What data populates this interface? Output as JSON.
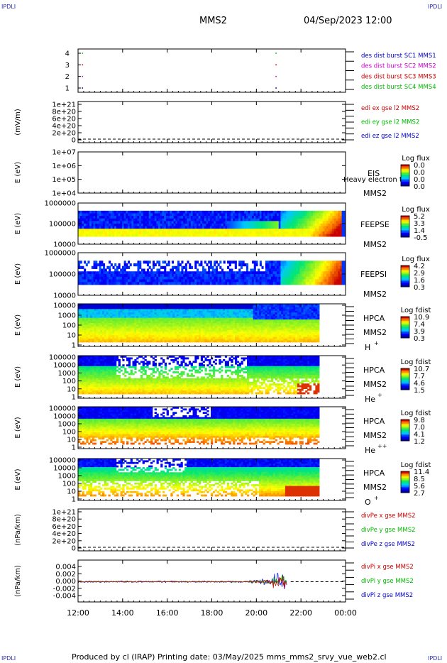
{
  "corner_label": "IPDLI",
  "header": {
    "spacecraft": "MMS2",
    "datetime": "04/Sep/2023 12:00"
  },
  "footer": {
    "text": "Produced by cl (IRAP)   Printing date: 03/May/2025   mms_mms2_srvy_vue_web2.cl"
  },
  "colors": {
    "mms1": "#0000cc",
    "mms2": "#cc00cc",
    "mms3": "#cc0000",
    "mms4": "#00bb00",
    "x": "#cc0000",
    "y": "#00bb00",
    "z": "#0000cc"
  },
  "chart_data": [
    {
      "type": "scatter",
      "panel": "burst",
      "yticks": [
        "1",
        "2",
        "3",
        "4"
      ],
      "legend": [
        {
          "label": "des dist burst SC1 MMS1",
          "color": "#0000cc"
        },
        {
          "label": "des dist burst SC2 MMS2",
          "color": "#cc00cc"
        },
        {
          "label": "des dist burst SC3 MMS3",
          "color": "#cc0000"
        },
        {
          "label": "des dist burst SC4 MMS4",
          "color": "#00bb00"
        }
      ],
      "points": [
        {
          "x": "12:12",
          "y": 4,
          "color": "#00bb00"
        },
        {
          "x": "12:12",
          "y": 3,
          "color": "#cc0000"
        },
        {
          "x": "12:12",
          "y": 2,
          "color": "#cc00cc"
        },
        {
          "x": "12:12",
          "y": 1,
          "color": "#0000cc"
        },
        {
          "x": "20:53",
          "y": 4,
          "color": "#00bb00"
        },
        {
          "x": "20:53",
          "y": 3,
          "color": "#cc0000"
        },
        {
          "x": "20:53",
          "y": 2,
          "color": "#cc00cc"
        },
        {
          "x": "20:53",
          "y": 1,
          "color": "#0000cc"
        }
      ]
    },
    {
      "type": "line",
      "panel": "edi",
      "ylabel": "(mV/m)",
      "yticks": [
        "1e+21",
        "8e+20",
        "6e+20",
        "4e+20",
        "2e+20",
        "0"
      ],
      "legend": [
        {
          "label": "edi ex gse l2 MMS2",
          "color": "#cc0000"
        },
        {
          "label": "edi ey gse l2 MMS2",
          "color": "#00bb00"
        },
        {
          "label": "edi ez gse l2 MMS2",
          "color": "#0000cc"
        }
      ]
    },
    {
      "type": "heatmap",
      "panel": "eis",
      "ylabel": "E (eV)",
      "yticks": [
        "1e+07",
        "1e+06",
        "1e+05",
        "1e+04"
      ],
      "instrument": "EIS",
      "species": "Heavy electron to",
      "sc": "MMS2",
      "cbar_title": "Log flux",
      "cbar_ticks": [
        "0.0",
        "0.0",
        "0.0",
        "0.0"
      ]
    },
    {
      "type": "heatmap",
      "panel": "feepse",
      "ylabel": "E (eV)",
      "yticks": [
        "1000000",
        "100000",
        "10000"
      ],
      "instrument": "FEEPSE",
      "sc": "MMS2",
      "cbar_title": "Log flux",
      "cbar_ticks": [
        "5.2",
        "3.3",
        "1.4",
        "-0.5"
      ]
    },
    {
      "type": "heatmap",
      "panel": "feepsi",
      "ylabel": "E (eV)",
      "yticks": [
        "1000000",
        "100000",
        "10000"
      ],
      "instrument": "FEEPSI",
      "sc": "MMS2",
      "cbar_title": "Log flux",
      "cbar_ticks": [
        "4.2",
        "2.9",
        "1.6",
        "0.3"
      ]
    },
    {
      "type": "heatmap",
      "panel": "hpca_h",
      "ylabel": "E (eV)",
      "yticks": [
        "10000",
        "1000",
        "100",
        "10",
        "1"
      ],
      "instrument": "HPCA",
      "sc": "MMS2",
      "ion": "H",
      "charge": "+",
      "cbar_title": "Log fdist",
      "cbar_ticks": [
        "10.9",
        "7.4",
        "3.9",
        "0.3"
      ]
    },
    {
      "type": "heatmap",
      "panel": "hpca_he",
      "ylabel": "E (eV)",
      "yticks": [
        "100000",
        "10000",
        "1000",
        "100",
        "10",
        "1"
      ],
      "instrument": "HPCA",
      "sc": "MMS2",
      "ion": "He",
      "charge": "+",
      "cbar_title": "Log fdist",
      "cbar_ticks": [
        "10.7",
        "7.7",
        "4.6",
        "1.5"
      ]
    },
    {
      "type": "heatmap",
      "panel": "hpca_hepp",
      "ylabel": "E (eV)",
      "yticks": [
        "100000",
        "10000",
        "1000",
        "100",
        "10",
        "1"
      ],
      "instrument": "HPCA",
      "sc": "MMS2",
      "ion": "He",
      "charge": "++",
      "cbar_title": "Log fdist",
      "cbar_ticks": [
        "9.8",
        "7.0",
        "4.1",
        "1.2"
      ]
    },
    {
      "type": "heatmap",
      "panel": "hpca_o",
      "ylabel": "E (eV)",
      "yticks": [
        "100000",
        "10000",
        "1000",
        "100",
        "10",
        "1"
      ],
      "instrument": "HPCA",
      "sc": "MMS2",
      "ion": "O",
      "charge": "+",
      "cbar_title": "Log fdist",
      "cbar_ticks": [
        "11.4",
        "8.5",
        "5.6",
        "2.7"
      ]
    },
    {
      "type": "line",
      "panel": "divpe",
      "ylabel": "(nPa/km)",
      "yticks": [
        "1e+21",
        "8e+20",
        "6e+20",
        "4e+20",
        "2e+20",
        "0"
      ],
      "legend": [
        {
          "label": "divPe x gse MMS2",
          "color": "#cc0000"
        },
        {
          "label": "divPe y gse MMS2",
          "color": "#00bb00"
        },
        {
          "label": "divPe z gse MMS2",
          "color": "#0000cc"
        }
      ]
    },
    {
      "type": "line",
      "panel": "divpi",
      "ylabel": "(nPa/km)",
      "yticks": [
        "0.004",
        "0.002",
        "0.000",
        "-0.002",
        "-0.004"
      ],
      "ylim": [
        -0.005,
        0.005
      ],
      "legend": [
        {
          "label": "divPi x gse MMS2",
          "color": "#cc0000"
        },
        {
          "label": "divPi y gse MMS2",
          "color": "#00bb00"
        },
        {
          "label": "divPi z gse MMS2",
          "color": "#0000cc"
        }
      ]
    }
  ],
  "xaxis": {
    "ticks": [
      "12:00",
      "14:00",
      "16:00",
      "18:00",
      "20:00",
      "22:00",
      "00:00"
    ]
  }
}
